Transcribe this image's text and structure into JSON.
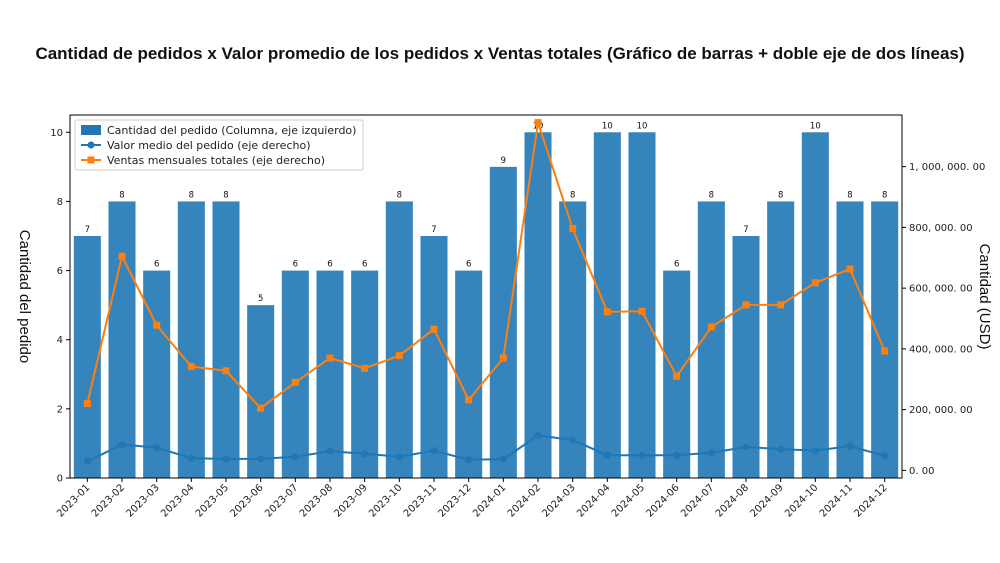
{
  "chart_data": {
    "type": "bar",
    "title": "Cantidad de pedidos x Valor promedio de los pedidos x Ventas totales (Gráfico de barras + doble eje de dos líneas)",
    "ylabel": "Cantidad del pedido",
    "y2label": "Cantidad (USD)",
    "ylim": [
      0,
      10.5
    ],
    "y2lim": [
      -25000,
      1170000
    ],
    "y_ticks": [
      "0",
      "2",
      "4",
      "6",
      "8",
      "10"
    ],
    "y2_ticks": [
      "0. 00",
      "200, 000. 00",
      "400, 000. 00",
      "600, 000. 00",
      "800, 000. 00",
      "1, 000, 000. 00"
    ],
    "categories": [
      "2023-01",
      "2023-02",
      "2023-03",
      "2023-04",
      "2023-05",
      "2023-06",
      "2023-07",
      "2023-08",
      "2023-09",
      "2023-10",
      "2023-11",
      "2023-12",
      "2024-01",
      "2024-02",
      "2024-03",
      "2024-04",
      "2024-05",
      "2024-06",
      "2024-07",
      "2024-08",
      "2024-09",
      "2024-10",
      "2024-11",
      "2024-12"
    ],
    "legend_position": "top-left",
    "grid": false,
    "series": [
      {
        "name": "Cantidad del pedido (Columna, eje izquierdo)",
        "type": "bar",
        "axis": "left",
        "color": "#1f77b4",
        "values": [
          7,
          8,
          6,
          8,
          8,
          5,
          6,
          6,
          6,
          8,
          7,
          6,
          9,
          10,
          8,
          10,
          10,
          6,
          8,
          7,
          8,
          10,
          8,
          8
        ]
      },
      {
        "name": "Valor medio del pedido (eje derecho)",
        "type": "line",
        "axis": "right",
        "color": "#1f77b4",
        "marker": "circle",
        "values": [
          30000,
          85000,
          75000,
          40000,
          38000,
          38000,
          45000,
          63000,
          55000,
          45000,
          65000,
          35000,
          37000,
          115000,
          100000,
          50000,
          50000,
          50000,
          58000,
          77000,
          70000,
          65000,
          80000,
          48000
        ]
      },
      {
        "name": "Ventas mensuales totales (eje derecho)",
        "type": "line",
        "axis": "right",
        "color": "#ff7f0e",
        "marker": "square",
        "values": [
          220000,
          705000,
          478000,
          342000,
          328000,
          205000,
          290000,
          370000,
          336000,
          378000,
          465000,
          232000,
          370000,
          1145000,
          796000,
          522000,
          524000,
          310000,
          472000,
          545000,
          545000,
          618000,
          663000,
          393000
        ]
      }
    ]
  }
}
